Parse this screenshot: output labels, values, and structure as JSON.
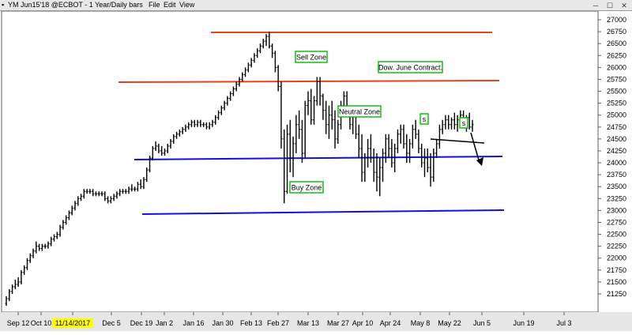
{
  "window": {
    "title": "YM Jun15'18 @ECBOT - 1 Year/Daily bars",
    "menu": [
      "File",
      "Edit",
      "View"
    ]
  },
  "colors": {
    "resistance": "#e8411d",
    "support": "#1010e0",
    "bars": "#000000",
    "annotation_border": "#10c010",
    "highlight_label": "#ffff00"
  },
  "chart_data": {
    "type": "ohlc",
    "x_ticks": [
      "Sep 12",
      "Oct 10",
      "11/14/2017",
      "Dec 5",
      "Dec 19",
      "Jan 2",
      "Jan 16",
      "Jan 30",
      "Feb 13",
      "Feb 27",
      "Mar 13",
      "Mar 27",
      "Apr 10",
      "Apr 24",
      "May 8",
      "May 22",
      "Jun 5",
      "Jun 19",
      "Jul 3"
    ],
    "highlighted_x_tick": "11/14/2017",
    "y_ticks": [
      "21250",
      "21500",
      "21750",
      "22000",
      "22250",
      "22500",
      "22750",
      "23000",
      "23250",
      "23500",
      "23750",
      "24000",
      "24250",
      "24500",
      "24750",
      "25000",
      "25250",
      "25500",
      "25750",
      "26000",
      "26250",
      "26500",
      "26750",
      "27000"
    ],
    "ylim": [
      21000,
      27100
    ],
    "series": [
      {
        "date_index_start": 0,
        "bars": [
          [
            21050,
            21200,
            21000,
            21150
          ],
          [
            21150,
            21350,
            21100,
            21300
          ],
          [
            21300,
            21450,
            21250,
            21400
          ],
          [
            21400,
            21550,
            21350,
            21450
          ],
          [
            21450,
            21600,
            21400,
            21500
          ],
          [
            21500,
            21750,
            21450,
            21700
          ],
          [
            21700,
            21850,
            21650,
            21800
          ],
          [
            21800,
            22000,
            21750,
            21950
          ],
          [
            21950,
            22100,
            21900,
            22050
          ],
          [
            22050,
            22200,
            22000,
            22150
          ],
          [
            22150,
            22350,
            22100,
            22250
          ],
          [
            22250,
            22300,
            22150,
            22200
          ],
          [
            22200,
            22300,
            22150,
            22250
          ],
          [
            22250,
            22300,
            22200,
            22250
          ],
          [
            22250,
            22350,
            22200,
            22300
          ],
          [
            22300,
            22450,
            22250,
            22400
          ],
          [
            22400,
            22500,
            22350,
            22450
          ],
          [
            22450,
            22550,
            22400,
            22500
          ],
          [
            22500,
            22700,
            22450,
            22650
          ],
          [
            22650,
            22800,
            22600,
            22750
          ],
          [
            22750,
            22900,
            22700,
            22850
          ],
          [
            22850,
            23000,
            22800,
            22950
          ],
          [
            22950,
            23100,
            22900,
            23050
          ],
          [
            23050,
            23200,
            23000,
            23150
          ],
          [
            23150,
            23300,
            23100,
            23250
          ],
          [
            23250,
            23350,
            23200,
            23300
          ],
          [
            23300,
            23450,
            23250,
            23400
          ],
          [
            23400,
            23450,
            23350,
            23400
          ],
          [
            23400,
            23450,
            23350,
            23400
          ],
          [
            23400,
            23450,
            23300,
            23350
          ],
          [
            23350,
            23400,
            23300,
            23350
          ],
          [
            23350,
            23400,
            23300,
            23350
          ],
          [
            23350,
            23400,
            23300,
            23350
          ],
          [
            23350,
            23400,
            23200,
            23250
          ],
          [
            23250,
            23300,
            23150,
            23200
          ],
          [
            23200,
            23300,
            23150,
            23250
          ],
          [
            23250,
            23350,
            23200,
            23300
          ],
          [
            23300,
            23400,
            23250,
            23350
          ],
          [
            23350,
            23450,
            23300,
            23400
          ],
          [
            23400,
            23450,
            23350,
            23400
          ],
          [
            23400,
            23450,
            23350,
            23400
          ],
          [
            23400,
            23500,
            23350,
            23450
          ],
          [
            23450,
            23550,
            23400,
            23450
          ],
          [
            23450,
            23500,
            23400,
            23450
          ],
          [
            23450,
            23600,
            23400,
            23550
          ],
          [
            23550,
            23650,
            23450,
            23500
          ],
          [
            23500,
            23700,
            23450,
            23650
          ],
          [
            23650,
            23900,
            23600,
            23850
          ],
          [
            23850,
            24150,
            23800,
            24100
          ],
          [
            24100,
            24350,
            24050,
            24300
          ],
          [
            24300,
            24450,
            24250,
            24350
          ],
          [
            24350,
            24400,
            24200,
            24250
          ],
          [
            24250,
            24350,
            24150,
            24200
          ],
          [
            24200,
            24300,
            24150,
            24250
          ],
          [
            24250,
            24400,
            24200,
            24350
          ],
          [
            24350,
            24500,
            24300,
            24450
          ],
          [
            24450,
            24600,
            24400,
            24550
          ],
          [
            24550,
            24650,
            24500,
            24600
          ],
          [
            24600,
            24700,
            24550,
            24650
          ],
          [
            24650,
            24750,
            24600,
            24700
          ],
          [
            24700,
            24800,
            24650,
            24750
          ],
          [
            24750,
            24850,
            24700,
            24800
          ],
          [
            24800,
            24900,
            24750,
            24850
          ],
          [
            24850,
            24900,
            24750,
            24800
          ],
          [
            24800,
            24900,
            24750,
            24850
          ],
          [
            24850,
            24900,
            24750,
            24800
          ],
          [
            24800,
            24850,
            24750,
            24800
          ],
          [
            24800,
            24850,
            24700,
            24750
          ],
          [
            24750,
            24850,
            24700,
            24800
          ],
          [
            24800,
            24900,
            24750,
            24850
          ],
          [
            24850,
            25000,
            24800,
            24950
          ],
          [
            24950,
            25100,
            24900,
            25050
          ],
          [
            25050,
            25200,
            25000,
            25150
          ],
          [
            25150,
            25300,
            25100,
            25250
          ],
          [
            25250,
            25400,
            25200,
            25350
          ],
          [
            25350,
            25500,
            25300,
            25450
          ],
          [
            25450,
            25600,
            25400,
            25550
          ],
          [
            25550,
            25700,
            25500,
            25650
          ],
          [
            25650,
            25800,
            25600,
            25750
          ],
          [
            25750,
            25900,
            25700,
            25850
          ],
          [
            25850,
            26000,
            25800,
            25950
          ],
          [
            25950,
            26100,
            25900,
            26050
          ],
          [
            26050,
            26200,
            26000,
            26150
          ],
          [
            26150,
            26300,
            26100,
            26250
          ],
          [
            26250,
            26400,
            26200,
            26350
          ],
          [
            26350,
            26500,
            26300,
            26450
          ],
          [
            26450,
            26600,
            26400,
            26550
          ],
          [
            26550,
            26700,
            26450,
            26650
          ],
          [
            26650,
            26750,
            26400,
            26450
          ],
          [
            26450,
            26500,
            26200,
            26300
          ],
          [
            26300,
            26350,
            25900,
            26000
          ],
          [
            26000,
            26050,
            25500,
            25600
          ],
          [
            25600,
            25700,
            24300,
            24500
          ],
          [
            24500,
            24700,
            23150,
            23400
          ],
          [
            23400,
            24800,
            23350,
            24600
          ],
          [
            24600,
            24900,
            23800,
            24100
          ],
          [
            24100,
            24550,
            23700,
            24400
          ],
          [
            24400,
            25000,
            24200,
            24800
          ],
          [
            24800,
            25100,
            24500,
            24700
          ],
          [
            24700,
            24900,
            24000,
            24200
          ],
          [
            24200,
            25300,
            24100,
            25200
          ],
          [
            25200,
            25500,
            25000,
            25300
          ],
          [
            25300,
            25550,
            24800,
            24900
          ],
          [
            24900,
            25400,
            24800,
            25300
          ],
          [
            25300,
            25800,
            25200,
            25700
          ],
          [
            25700,
            25800,
            25200,
            25400
          ],
          [
            25400,
            25450,
            24900,
            25100
          ],
          [
            25100,
            25300,
            24600,
            24800
          ],
          [
            24800,
            25200,
            24500,
            25000
          ],
          [
            25000,
            25300,
            24700,
            24900
          ],
          [
            24900,
            25100,
            24300,
            24500
          ],
          [
            24500,
            24900,
            24400,
            24800
          ],
          [
            24800,
            25300,
            24700,
            25200
          ],
          [
            25200,
            25500,
            25000,
            25400
          ],
          [
            25400,
            25500,
            25000,
            25100
          ],
          [
            25100,
            25200,
            24700,
            24800
          ],
          [
            24800,
            25100,
            24600,
            25000
          ],
          [
            25000,
            25100,
            24500,
            24600
          ],
          [
            24600,
            24800,
            24100,
            24300
          ],
          [
            24300,
            24600,
            23600,
            23800
          ],
          [
            23800,
            24200,
            23600,
            24100
          ],
          [
            24100,
            24500,
            23900,
            24300
          ],
          [
            24300,
            24600,
            24000,
            24100
          ],
          [
            24100,
            24300,
            23600,
            23800
          ],
          [
            23800,
            24200,
            23400,
            23700
          ],
          [
            23700,
            24100,
            23300,
            23900
          ],
          [
            23900,
            24300,
            23600,
            24200
          ],
          [
            24200,
            24600,
            24000,
            24500
          ],
          [
            24500,
            24600,
            24100,
            24300
          ],
          [
            24300,
            24500,
            23900,
            24000
          ],
          [
            24000,
            24400,
            23800,
            24300
          ],
          [
            24300,
            24700,
            24200,
            24600
          ],
          [
            24600,
            24800,
            24400,
            24700
          ],
          [
            24700,
            24800,
            24300,
            24400
          ],
          [
            24400,
            24600,
            24000,
            24200
          ],
          [
            24200,
            24500,
            24000,
            24400
          ],
          [
            24400,
            24800,
            24300,
            24700
          ],
          [
            24700,
            24900,
            24500,
            24600
          ],
          [
            24600,
            24700,
            24200,
            24300
          ],
          [
            24300,
            24400,
            23900,
            24000
          ],
          [
            24000,
            24300,
            23700,
            24100
          ],
          [
            24100,
            24300,
            23800,
            23900
          ],
          [
            23900,
            24200,
            23500,
            23700
          ],
          [
            23700,
            24300,
            23600,
            24200
          ],
          [
            24200,
            24500,
            24100,
            24400
          ],
          [
            24400,
            24800,
            24300,
            24700
          ],
          [
            24700,
            24900,
            24600,
            24800
          ],
          [
            24800,
            25000,
            24700,
            24900
          ],
          [
            24900,
            25000,
            24700,
            24800
          ],
          [
            24800,
            24950,
            24700,
            24900
          ],
          [
            24900,
            25050,
            24700,
            24800
          ],
          [
            24800,
            25000,
            24650,
            24900
          ],
          [
            24900,
            25100,
            24800,
            25000
          ],
          [
            25000,
            25100,
            24750,
            24850
          ],
          [
            24850,
            25000,
            24650,
            24950
          ],
          [
            24950,
            25050,
            24700,
            24750
          ],
          [
            24750,
            24900,
            24650,
            24800
          ]
        ]
      }
    ],
    "annotations": [
      "Sell Zone",
      "Dow. June Contract.",
      "Neutral Zone",
      "Buy Zone",
      "s",
      "s"
    ],
    "grid": false
  }
}
